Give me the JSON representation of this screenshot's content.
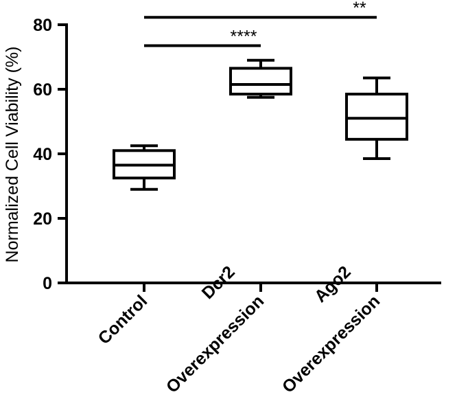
{
  "chart_data": {
    "type": "box",
    "ylabel": "Normalized Cell Viability (%)",
    "xlabel": "",
    "ylim": [
      0,
      80
    ],
    "yticks": [
      "0",
      "20",
      "40",
      "60",
      "80"
    ],
    "categories": [
      {
        "lines": [
          "Control"
        ]
      },
      {
        "lines": [
          "Dcr2",
          "Overexpression"
        ]
      },
      {
        "lines": [
          "Ago2",
          "Overexpression"
        ]
      }
    ],
    "boxes": [
      {
        "min": 29,
        "q1": 32.5,
        "median": 36.5,
        "q3": 41,
        "max": 42.5
      },
      {
        "min": 57.5,
        "q1": 58.5,
        "median": 61.5,
        "q3": 66.5,
        "max": 69
      },
      {
        "min": 38.5,
        "q1": 44.5,
        "median": 51,
        "q3": 58.5,
        "max": 63.5
      }
    ],
    "significance": [
      {
        "from": 0,
        "to": 1,
        "label": "****",
        "y": 73.5
      },
      {
        "from": 0,
        "to": 2,
        "label": "**",
        "y": 82.3
      }
    ]
  }
}
